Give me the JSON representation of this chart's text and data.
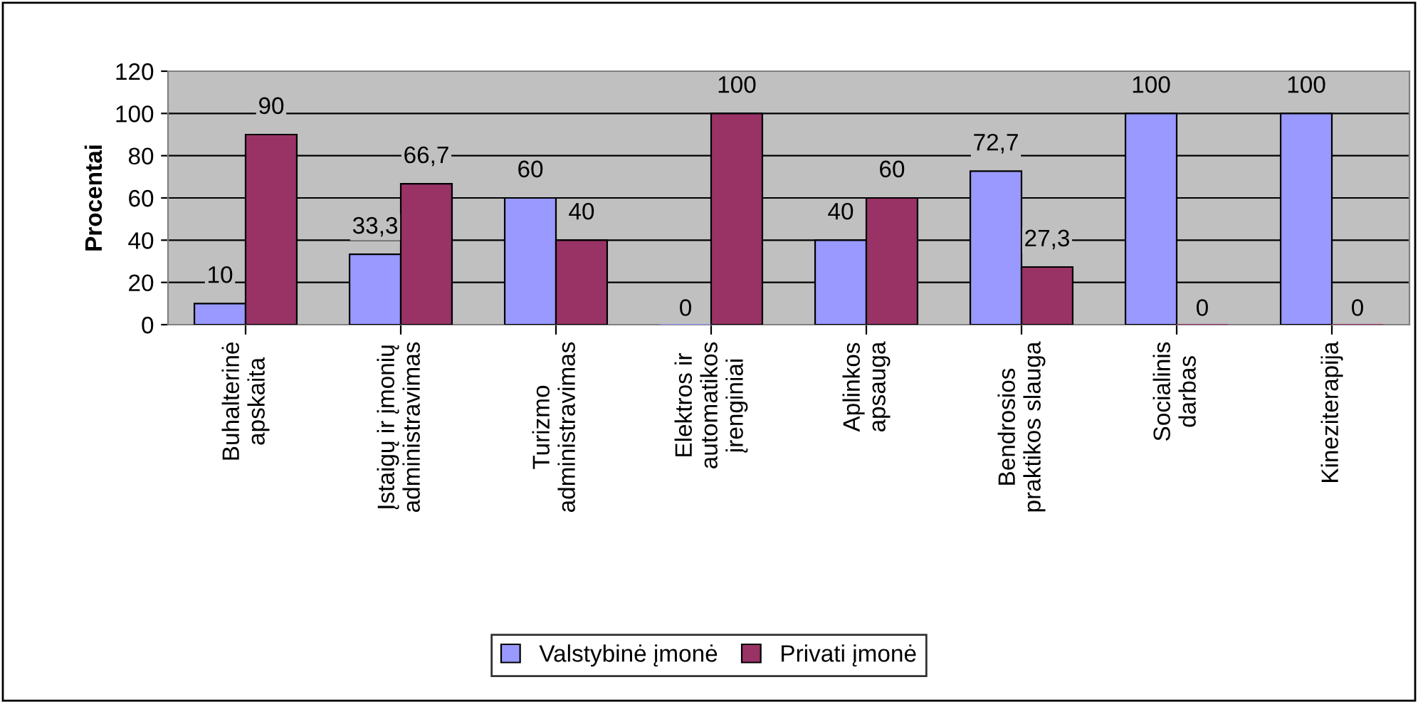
{
  "chart_data": {
    "type": "bar",
    "ylabel": "Procentai",
    "categories": [
      "Buhalterinė\napskaita",
      "Įstaigų ir įmonių\nadministravimas",
      "Turizmo\nadministravimas",
      "Elektros ir\nautomatikos\nįrenginiai",
      "Aplinkos\napsauga",
      "Bendrosios\npraktikos slauga",
      "Socialinis\ndarbas",
      "Kineziterapija"
    ],
    "series": [
      {
        "name": "Valstybinė įmonė",
        "color": "#9999ff",
        "values": [
          10,
          33.3,
          60,
          0,
          40,
          72.7,
          100,
          100
        ],
        "value_labels": [
          "10",
          "33,3",
          "60",
          "0",
          "40",
          "72,7",
          "100",
          "100"
        ]
      },
      {
        "name": "Privati įmonė",
        "color": "#993366",
        "values": [
          90,
          66.7,
          40,
          100,
          60,
          27.3,
          0,
          0
        ],
        "value_labels": [
          "90",
          "66,7",
          "40",
          "100",
          "60",
          "27,3",
          "0",
          "0"
        ]
      }
    ],
    "ylim": [
      0,
      120
    ],
    "yticks": [
      0,
      20,
      40,
      60,
      80,
      100,
      120
    ],
    "grid": "y",
    "legend": "bottom"
  }
}
